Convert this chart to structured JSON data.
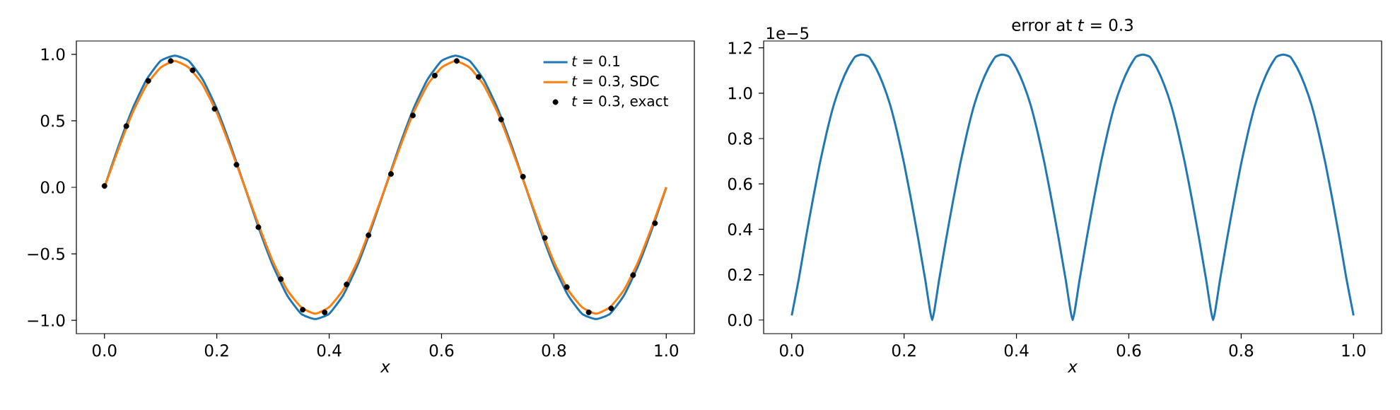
{
  "chart_data": [
    {
      "type": "line",
      "xlabel": "x",
      "xlim": [
        -0.05,
        1.05
      ],
      "ylim": [
        -1.1,
        1.1
      ],
      "xticks": [
        {
          "value": 0,
          "label": "0.0"
        },
        {
          "value": 0.2,
          "label": "0.2"
        },
        {
          "value": 0.4,
          "label": "0.4"
        },
        {
          "value": 0.6,
          "label": "0.6"
        },
        {
          "value": 0.8,
          "label": "0.8"
        },
        {
          "value": 1,
          "label": "1.0"
        }
      ],
      "yticks": [
        {
          "value": -1,
          "label": "−1.0"
        },
        {
          "value": -0.5,
          "label": "−0.5"
        },
        {
          "value": 0,
          "label": "0.0"
        },
        {
          "value": 0.5,
          "label": "0.5"
        },
        {
          "value": 1,
          "label": "1.0"
        }
      ],
      "legend": "top right",
      "series": [
        {
          "name": "*t* = 0.1",
          "type": "line",
          "color": "#1f77b4",
          "x": [
            0,
            0.025,
            0.05,
            0.075,
            0.1,
            0.125,
            0.15,
            0.175,
            0.2,
            0.225,
            0.25,
            0.275,
            0.3,
            0.325,
            0.35,
            0.375,
            0.4,
            0.425,
            0.45,
            0.475,
            0.5,
            0.525,
            0.55,
            0.575,
            0.6,
            0.625,
            0.65,
            0.675,
            0.7,
            0.725,
            0.75,
            0.775,
            0.8,
            0.825,
            0.85,
            0.875,
            0.9,
            0.925,
            0.95,
            0.975,
            1
          ],
          "values": [
            0,
            0.31,
            0.59,
            0.81,
            0.95,
            0.99,
            0.95,
            0.81,
            0.59,
            0.31,
            0,
            -0.31,
            -0.59,
            -0.81,
            -0.95,
            -0.99,
            -0.95,
            -0.81,
            -0.59,
            -0.31,
            0,
            0.31,
            0.59,
            0.81,
            0.95,
            0.99,
            0.95,
            0.81,
            0.59,
            0.31,
            0,
            -0.31,
            -0.59,
            -0.81,
            -0.95,
            -0.99,
            -0.95,
            -0.81,
            -0.59,
            -0.31,
            0
          ]
        },
        {
          "name": "*t* = 0.3, SDC",
          "type": "line",
          "color": "#ff7f0e",
          "x": [
            0,
            0.025,
            0.05,
            0.075,
            0.1,
            0.125,
            0.15,
            0.175,
            0.2,
            0.225,
            0.25,
            0.275,
            0.3,
            0.325,
            0.35,
            0.375,
            0.4,
            0.425,
            0.45,
            0.475,
            0.5,
            0.525,
            0.55,
            0.575,
            0.6,
            0.625,
            0.65,
            0.675,
            0.7,
            0.725,
            0.75,
            0.775,
            0.8,
            0.825,
            0.85,
            0.875,
            0.9,
            0.925,
            0.95,
            0.975,
            1
          ],
          "values": [
            0,
            0.29,
            0.56,
            0.77,
            0.9,
            0.95,
            0.9,
            0.77,
            0.56,
            0.29,
            0,
            -0.29,
            -0.56,
            -0.77,
            -0.9,
            -0.95,
            -0.9,
            -0.77,
            -0.56,
            -0.29,
            0,
            0.29,
            0.56,
            0.77,
            0.9,
            0.95,
            0.9,
            0.77,
            0.56,
            0.29,
            0,
            -0.29,
            -0.56,
            -0.77,
            -0.9,
            -0.95,
            -0.9,
            -0.77,
            -0.56,
            -0.29,
            0
          ]
        },
        {
          "name": "*t* = 0.3, exact",
          "type": "scatter",
          "marker": "circle",
          "color": "#000000",
          "x": [
            0,
            0.039,
            0.078,
            0.118,
            0.157,
            0.196,
            0.235,
            0.274,
            0.314,
            0.353,
            0.392,
            0.431,
            0.47,
            0.51,
            0.549,
            0.588,
            0.627,
            0.666,
            0.706,
            0.745,
            0.784,
            0.823,
            0.862,
            0.902,
            0.941,
            0.98
          ],
          "values": [
            0.01,
            0.46,
            0.8,
            0.95,
            0.88,
            0.59,
            0.17,
            -0.3,
            -0.69,
            -0.92,
            -0.94,
            -0.73,
            -0.36,
            0.1,
            0.54,
            0.84,
            0.95,
            0.83,
            0.51,
            0.08,
            -0.38,
            -0.75,
            -0.94,
            -0.91,
            -0.66,
            -0.27
          ]
        }
      ]
    },
    {
      "type": "line",
      "title": "error at *t* = 0.3",
      "xlabel": "x",
      "xlim": [
        -0.05,
        1.05
      ],
      "ylim": [
        -0.06,
        1.23
      ],
      "xticks": [
        {
          "value": 0,
          "label": "0.0"
        },
        {
          "value": 0.2,
          "label": "0.2"
        },
        {
          "value": 0.4,
          "label": "0.4"
        },
        {
          "value": 0.6,
          "label": "0.6"
        },
        {
          "value": 0.8,
          "label": "0.8"
        },
        {
          "value": 1,
          "label": "1.0"
        }
      ],
      "yticks": [
        {
          "value": 0,
          "label": "0.0"
        },
        {
          "value": 0.2,
          "label": "0.2"
        },
        {
          "value": 0.4,
          "label": "0.4"
        },
        {
          "value": 0.6,
          "label": "0.6"
        },
        {
          "value": 0.8,
          "label": "0.8"
        },
        {
          "value": 1,
          "label": "1.0"
        },
        {
          "value": 1.2,
          "label": "1.2"
        }
      ],
      "annotations": [
        "1e−5"
      ],
      "series": [
        {
          "color": "#1f77b4",
          "x": [
            0,
            0.0125,
            0.025,
            0.0375,
            0.05,
            0.0625,
            0.075,
            0.0875,
            0.1,
            0.1125,
            0.125,
            0.1375,
            0.15,
            0.1625,
            0.175,
            0.1875,
            0.2,
            0.2125,
            0.225,
            0.2375,
            0.25,
            0.2625,
            0.275,
            0.2875,
            0.3,
            0.3125,
            0.325,
            0.3375,
            0.35,
            0.3625,
            0.375,
            0.3875,
            0.4,
            0.4125,
            0.425,
            0.4375,
            0.45,
            0.4625,
            0.475,
            0.4875,
            0.5,
            0.5125,
            0.525,
            0.5375,
            0.55,
            0.5625,
            0.575,
            0.5875,
            0.6,
            0.6125,
            0.625,
            0.6375,
            0.65,
            0.6625,
            0.675,
            0.6875,
            0.7,
            0.7125,
            0.725,
            0.7375,
            0.75,
            0.7625,
            0.775,
            0.7875,
            0.8,
            0.8125,
            0.825,
            0.8375,
            0.85,
            0.8625,
            0.875,
            0.8875,
            0.9,
            0.9125,
            0.925,
            0.9375,
            0.95,
            0.9625,
            0.975,
            0.9875,
            1
          ],
          "values": [
            0.02,
            0.18,
            0.36,
            0.53,
            0.69,
            0.83,
            0.95,
            1.04,
            1.11,
            1.16,
            1.17,
            1.16,
            1.11,
            1.04,
            0.95,
            0.83,
            0.69,
            0.53,
            0.36,
            0.18,
            0,
            0.18,
            0.36,
            0.53,
            0.69,
            0.83,
            0.95,
            1.04,
            1.11,
            1.16,
            1.17,
            1.16,
            1.11,
            1.04,
            0.95,
            0.83,
            0.69,
            0.53,
            0.36,
            0.18,
            0,
            0.18,
            0.36,
            0.53,
            0.69,
            0.83,
            0.95,
            1.04,
            1.11,
            1.16,
            1.17,
            1.16,
            1.11,
            1.04,
            0.95,
            0.83,
            0.69,
            0.53,
            0.36,
            0.18,
            0,
            0.18,
            0.36,
            0.53,
            0.69,
            0.83,
            0.95,
            1.04,
            1.11,
            1.16,
            1.17,
            1.16,
            1.11,
            1.04,
            0.95,
            0.83,
            0.69,
            0.53,
            0.36,
            0.18,
            0.02
          ]
        }
      ]
    }
  ]
}
